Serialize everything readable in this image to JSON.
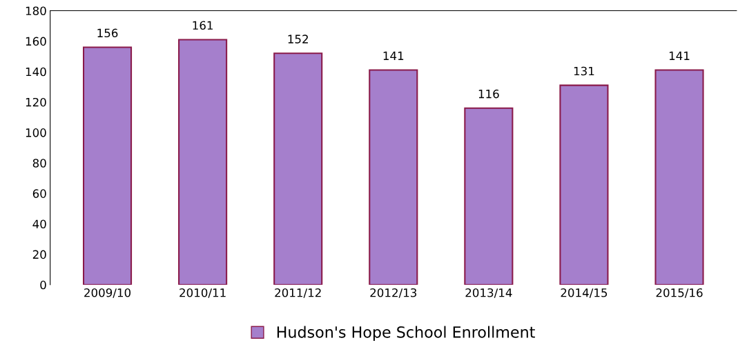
{
  "chart_data": {
    "type": "bar",
    "categories": [
      "2009/10",
      "2010/11",
      "2011/12",
      "2012/13",
      "2013/14",
      "2014/15",
      "2015/16"
    ],
    "series": [
      {
        "name": "Hudson's Hope School Enrollment",
        "color": "#a57fcc",
        "values": [
          156,
          161,
          152,
          141,
          116,
          131,
          141
        ]
      }
    ],
    "ylim": [
      0,
      180
    ],
    "yticks": [
      0,
      20,
      40,
      60,
      80,
      100,
      120,
      140,
      160,
      180
    ],
    "data_labels": true,
    "grid": false,
    "legend": "bottom"
  }
}
